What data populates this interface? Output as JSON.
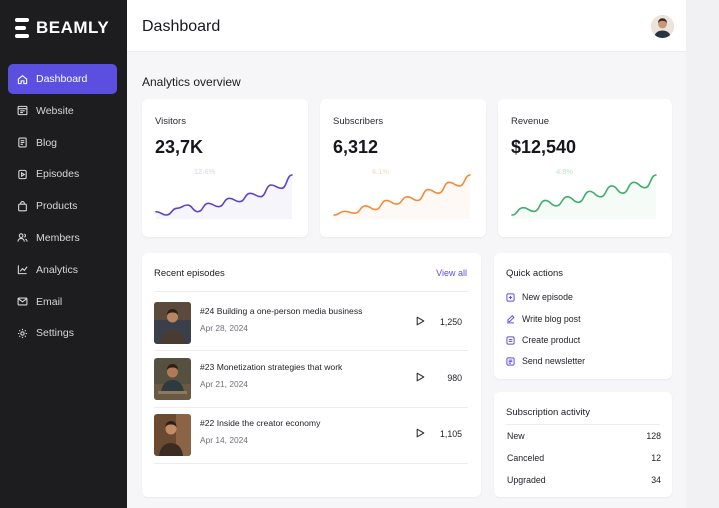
{
  "app": {
    "brand": "BEAMLY"
  },
  "sidebar": {
    "items": [
      {
        "label": "Dashboard",
        "icon": "home-icon",
        "active": true
      },
      {
        "label": "Website",
        "icon": "browser-icon"
      },
      {
        "label": "Blog",
        "icon": "book-icon"
      },
      {
        "label": "Episodes",
        "icon": "mic-icon"
      },
      {
        "label": "Products",
        "icon": "bag-icon"
      },
      {
        "label": "Members",
        "icon": "users-icon"
      },
      {
        "label": "Analytics",
        "icon": "chart-icon"
      },
      {
        "label": "Email",
        "icon": "mail-icon"
      },
      {
        "label": "Settings",
        "icon": "gear-icon"
      }
    ]
  },
  "header": {
    "title": "Dashboard"
  },
  "overview": {
    "title": "Analytics overview",
    "stats": [
      {
        "label": "Visitors",
        "value": "23,7K",
        "badge": "12.6%",
        "color": "#5b43c7",
        "trend": [
          22,
          20,
          24,
          26,
          22,
          27,
          25,
          30,
          28,
          33,
          31,
          38,
          36,
          44
        ]
      },
      {
        "label": "Subscribers",
        "value": "6,312",
        "badge": "6.1%",
        "color": "#f08c3a",
        "trend": [
          20,
          22,
          21,
          25,
          23,
          28,
          26,
          30,
          28,
          34,
          32,
          38,
          36,
          42
        ]
      },
      {
        "label": "Revenue",
        "value": "$12,540",
        "badge": "4.8%",
        "color": "#3fae6a",
        "trend": [
          20,
          24,
          22,
          28,
          25,
          30,
          27,
          33,
          30,
          36,
          32,
          38,
          35,
          42
        ]
      }
    ]
  },
  "episodes": {
    "title": "Recent episodes",
    "view_all": "View all",
    "rows": [
      {
        "title": "#24 Building a one-person media business",
        "date": "Apr 28, 2024",
        "plays": "1,250"
      },
      {
        "title": "#23 Monetization strategies that work",
        "date": "Apr 21, 2024",
        "plays": "980"
      },
      {
        "title": "#22 Inside the creator economy",
        "date": "Apr 14, 2024",
        "plays": "1,105"
      }
    ]
  },
  "quick_actions": {
    "title": "Quick actions",
    "items": [
      {
        "label": "New episode",
        "icon": "plus-square-icon"
      },
      {
        "label": "Write blog post",
        "icon": "edit-icon"
      },
      {
        "label": "Create product",
        "icon": "box-icon"
      },
      {
        "label": "Send newsletter",
        "icon": "newsletter-icon"
      }
    ]
  },
  "subscription": {
    "title": "Subscription activity",
    "rows": [
      {
        "label": "New",
        "value": "128"
      },
      {
        "label": "Canceled",
        "value": "12"
      },
      {
        "label": "Upgraded",
        "value": "34"
      }
    ]
  },
  "colors": {
    "accent": "#5b4fe0",
    "sidebar_bg": "#1d1d20"
  }
}
